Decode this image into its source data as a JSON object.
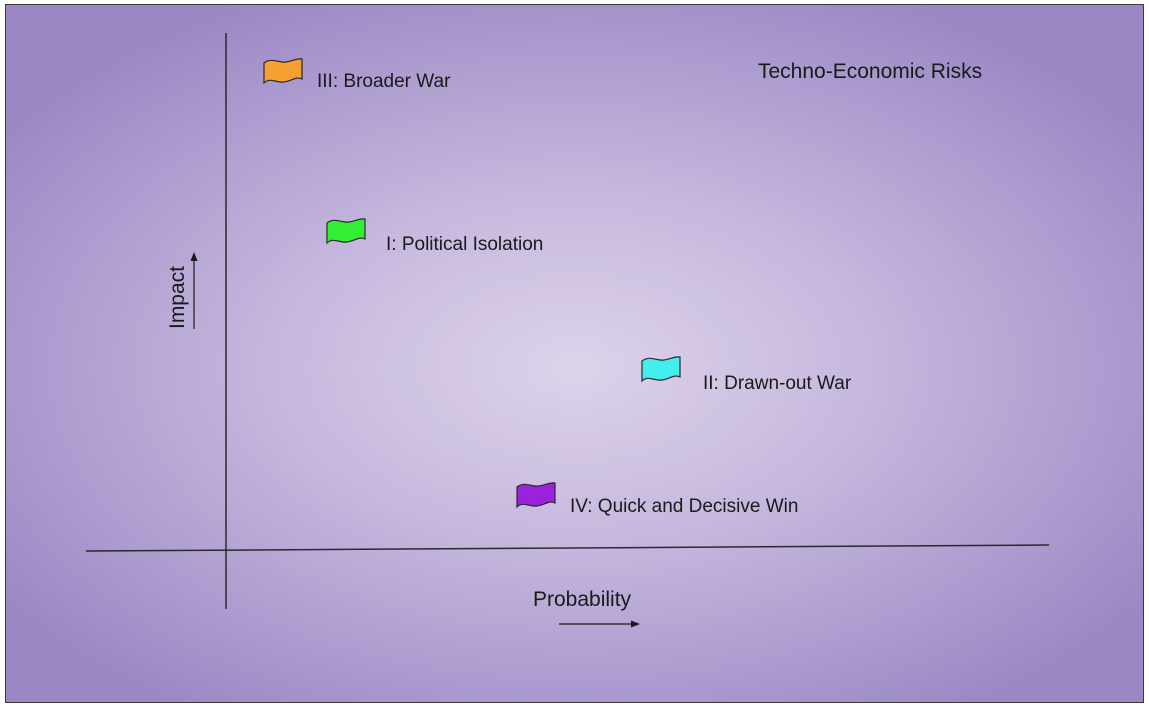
{
  "title": "Techno-Economic Risks",
  "axes": {
    "x_label": "Probability",
    "y_label": "Impact"
  },
  "scenarios": [
    {
      "id": "III",
      "label": "III: Broader War",
      "color": "#f5a030"
    },
    {
      "id": "I",
      "label": "I: Political Isolation",
      "color": "#33ee33"
    },
    {
      "id": "II",
      "label": "II: Drawn-out War",
      "color": "#44eeee"
    },
    {
      "id": "IV",
      "label": "IV: Quick and Decisive Win",
      "color": "#9a22dd"
    }
  ]
}
